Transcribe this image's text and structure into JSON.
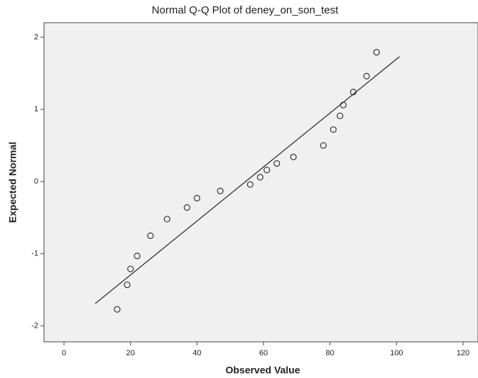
{
  "chart_data": {
    "type": "scatter",
    "title": "Normal Q-Q Plot of deney_on_son_test",
    "x_label": "Observed Value",
    "y_label": "Expected Normal",
    "x": [
      16,
      19,
      20,
      22,
      26,
      31,
      37,
      40,
      47,
      56,
      59,
      61,
      64,
      69,
      78,
      81,
      83,
      84,
      87,
      91,
      94
    ],
    "y": [
      -1.77,
      -1.43,
      -1.21,
      -1.03,
      -0.75,
      -0.52,
      -0.36,
      -0.23,
      -0.13,
      -0.04,
      0.06,
      0.16,
      0.25,
      0.34,
      0.5,
      0.72,
      0.91,
      1.06,
      1.24,
      1.46,
      1.79
    ],
    "reference_line": {
      "x": [
        9.4,
        100.9
      ],
      "y": [
        -1.69,
        1.73
      ]
    },
    "xlim": [
      -6,
      124.5
    ],
    "xticks": [
      0,
      20,
      40,
      60,
      80,
      100,
      120
    ],
    "ylim": [
      -2.22,
      2.2
    ],
    "yticks": [
      -2,
      -1,
      0,
      1,
      2
    ]
  }
}
